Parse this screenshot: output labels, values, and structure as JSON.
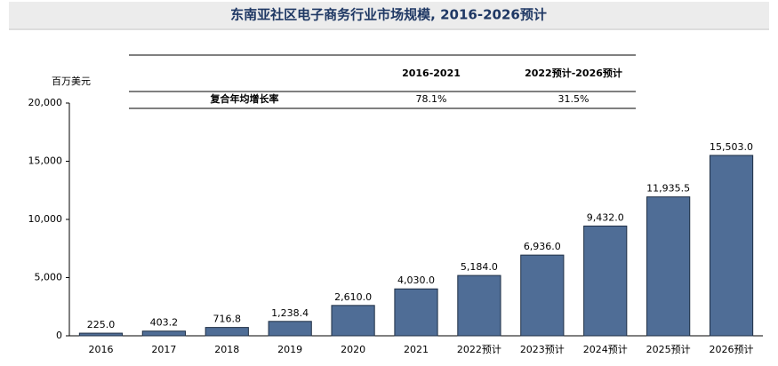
{
  "chart_data": {
    "type": "bar",
    "title": "东南亚社区电子商务行业市场规模, 2016-2026预计",
    "y_unit": "百万美元",
    "categories": [
      "2016",
      "2017",
      "2018",
      "2019",
      "2020",
      "2021",
      "2022预计",
      "2023预计",
      "2024预计",
      "2025预计",
      "2026预计"
    ],
    "values": [
      225.0,
      403.2,
      716.8,
      1238.4,
      2610.0,
      4030.0,
      5184.0,
      6936.0,
      9432.0,
      11935.5,
      15503.0
    ],
    "value_labels": [
      "225.0",
      "403.2",
      "716.8",
      "1,238.4",
      "2,610.0",
      "4,030.0",
      "5,184.0",
      "6,936.0",
      "9,432.0",
      "11,935.5",
      "15,503.0"
    ],
    "color": "#4f6d96",
    "ylim": [
      0,
      20000
    ],
    "yticks": [
      0,
      {
        "value": 5000,
        "label": "5,000"
      },
      {
        "value": 10000,
        "label": "10,000"
      },
      {
        "value": 15000,
        "label": "15,000"
      },
      {
        "value": 20000,
        "label": "20,000"
      }
    ],
    "grid": false,
    "cagr_table": {
      "columns": [
        "2016-2021",
        "2022预计-2026预计"
      ],
      "row_label": "复合年均增长率",
      "row_values": [
        "78.1%",
        "31.5%"
      ]
    }
  }
}
